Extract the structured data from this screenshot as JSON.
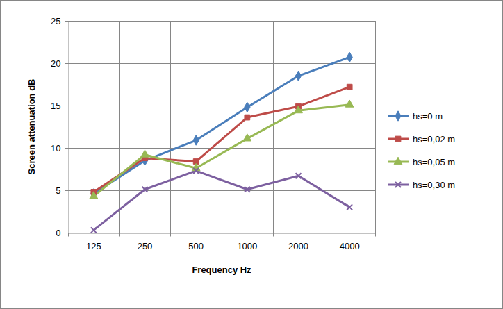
{
  "chart_data": {
    "type": "line",
    "x_label": "Frequency Hz",
    "y_label": "Screen attenuation dB",
    "categories": [
      "125",
      "250",
      "500",
      "1000",
      "2000",
      "4000"
    ],
    "series": [
      {
        "name": "hs=0 m",
        "color": "#4a7ebb",
        "marker": "diamond",
        "values": [
          4.6,
          8.5,
          10.9,
          14.8,
          18.5,
          20.7
        ]
      },
      {
        "name": "hs=0,02 m",
        "color": "#be4b48",
        "marker": "square",
        "values": [
          4.8,
          8.8,
          8.4,
          13.6,
          14.9,
          17.2
        ]
      },
      {
        "name": "hs=0,05 m",
        "color": "#98b954",
        "marker": "triangle",
        "values": [
          4.3,
          9.2,
          7.6,
          11.1,
          14.4,
          15.1
        ]
      },
      {
        "name": "hs=0,30 m",
        "color": "#7d60a0",
        "marker": "x",
        "values": [
          0.3,
          5.1,
          7.3,
          5.1,
          6.7,
          3.0
        ]
      }
    ],
    "ylim": [
      0,
      25
    ],
    "yticks": [
      0,
      5,
      10,
      15,
      20,
      25
    ],
    "grid": true,
    "legend": "right"
  }
}
